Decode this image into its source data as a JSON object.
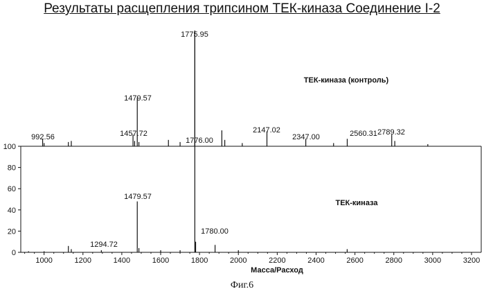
{
  "title": "Результаты расщепления трипсином ТЕК-киназа  Соединение I-2",
  "figure_label": "Фиг.6",
  "chart_data": {
    "type": "bar",
    "title": "Результаты расщепления трипсином ТЕК-киназа  Соединение I-2",
    "xlabel": "Масса/Расход",
    "ylabel": "",
    "xlim": [
      880,
      3250
    ],
    "ylim": [
      0,
      100
    ],
    "x_ticks": [
      1000,
      1200,
      1400,
      1600,
      1800,
      2000,
      2200,
      2400,
      2600,
      2800,
      3000,
      3200
    ],
    "y_ticks": [
      0,
      20,
      40,
      60,
      80,
      100
    ],
    "grid": false,
    "series": [
      {
        "name": "ТЕК-киназа (контроль)",
        "peaks": [
          {
            "x": 992.56,
            "y": 7,
            "label": "992.56"
          },
          {
            "x": 1000,
            "y": 3
          },
          {
            "x": 1125,
            "y": 4
          },
          {
            "x": 1140,
            "y": 5
          },
          {
            "x": 1457.72,
            "y": 11,
            "label": "1457.72"
          },
          {
            "x": 1466,
            "y": 5
          },
          {
            "x": 1479.57,
            "y": 46,
            "label": "1479.57"
          },
          {
            "x": 1488,
            "y": 4
          },
          {
            "x": 1640,
            "y": 6
          },
          {
            "x": 1700,
            "y": 4
          },
          {
            "x": 1775.95,
            "y": 112,
            "label": "1775.95"
          },
          {
            "x": 1776.0,
            "y": 8,
            "label": "1776.00"
          },
          {
            "x": 1915,
            "y": 15
          },
          {
            "x": 1930,
            "y": 6
          },
          {
            "x": 2020,
            "y": 3
          },
          {
            "x": 2147.02,
            "y": 14,
            "label": "2147.02"
          },
          {
            "x": 2347.0,
            "y": 7,
            "label": "2347.00"
          },
          {
            "x": 2490,
            "y": 3
          },
          {
            "x": 2560.31,
            "y": 7,
            "label": "2560.31"
          },
          {
            "x": 2789.32,
            "y": 11,
            "label": "2789.32"
          },
          {
            "x": 2805,
            "y": 5
          },
          {
            "x": 2975,
            "y": 2
          }
        ]
      },
      {
        "name": "ТЕК-киназа",
        "peaks": [
          {
            "x": 920,
            "y": 1
          },
          {
            "x": 1000,
            "y": 1
          },
          {
            "x": 1125,
            "y": 6
          },
          {
            "x": 1140,
            "y": 3
          },
          {
            "x": 1294.72,
            "y": 2,
            "label": "1294.72"
          },
          {
            "x": 1479.57,
            "y": 48,
            "label": "1479.57"
          },
          {
            "x": 1488,
            "y": 4
          },
          {
            "x": 1600,
            "y": 2
          },
          {
            "x": 1700,
            "y": 2
          },
          {
            "x": 1775.95,
            "y": 100
          },
          {
            "x": 1780.0,
            "y": 10,
            "label": "1780.00"
          },
          {
            "x": 1880,
            "y": 7
          },
          {
            "x": 2000,
            "y": 2
          },
          {
            "x": 2560,
            "y": 3
          }
        ]
      }
    ]
  }
}
